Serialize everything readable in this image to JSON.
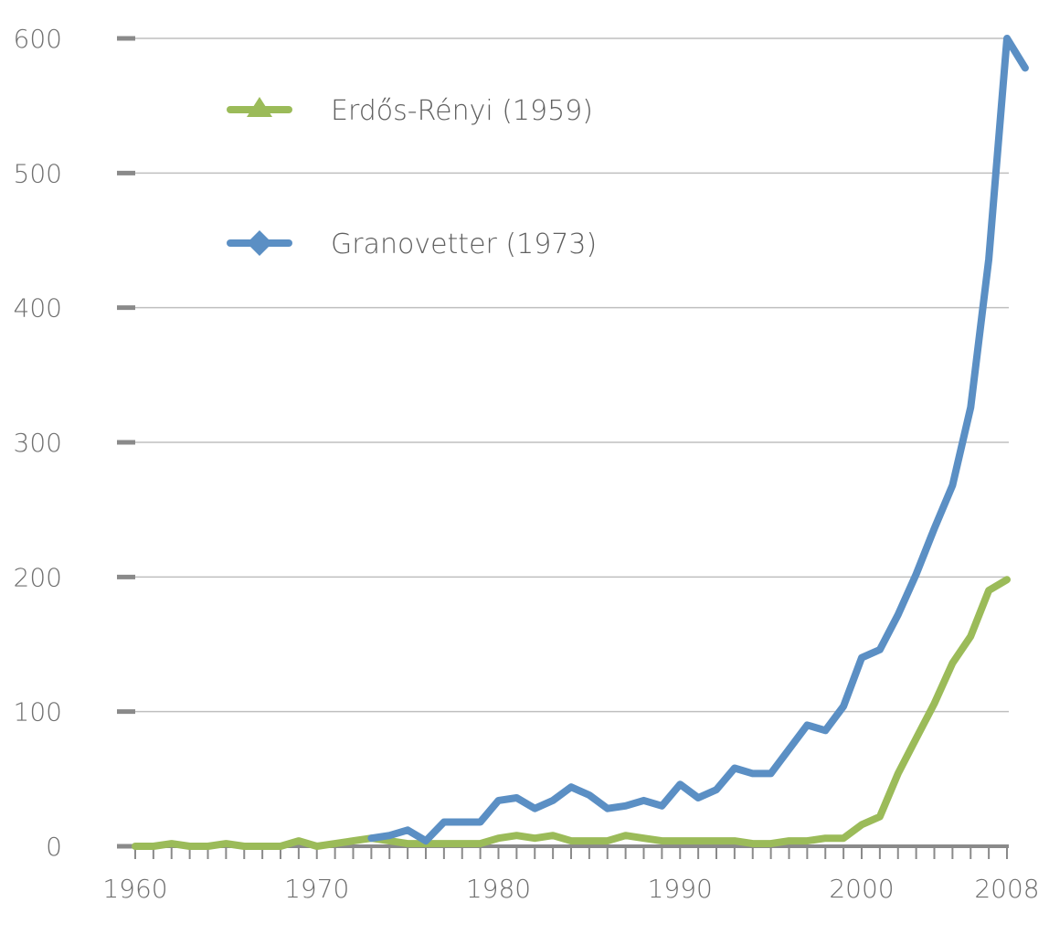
{
  "chart_data": {
    "type": "line",
    "title": "",
    "xlabel": "",
    "ylabel": "",
    "xlim": [
      1960,
      2008
    ],
    "ylim": [
      0,
      600
    ],
    "x_ticks": [
      1960,
      1970,
      1980,
      1990,
      2000,
      2008
    ],
    "y_ticks": [
      0,
      100,
      200,
      300,
      400,
      500,
      600
    ],
    "grid": true,
    "legend_position": "top-left",
    "series": [
      {
        "name": "Erdős-Rényi (1959)",
        "color": "#9bbb59",
        "marker": "triangle",
        "x": [
          1960,
          1961,
          1962,
          1963,
          1964,
          1965,
          1966,
          1967,
          1968,
          1969,
          1970,
          1971,
          1972,
          1973,
          1974,
          1975,
          1976,
          1977,
          1978,
          1979,
          1980,
          1981,
          1982,
          1983,
          1984,
          1985,
          1986,
          1987,
          1988,
          1989,
          1990,
          1991,
          1992,
          1993,
          1994,
          1995,
          1996,
          1997,
          1998,
          1999,
          2000,
          2001,
          2002,
          2003,
          2004,
          2005,
          2006,
          2007,
          2008
        ],
        "y": [
          0,
          0,
          2,
          0,
          0,
          2,
          0,
          0,
          0,
          4,
          0,
          2,
          4,
          6,
          4,
          2,
          2,
          2,
          2,
          2,
          6,
          8,
          6,
          8,
          4,
          4,
          4,
          8,
          6,
          4,
          4,
          4,
          4,
          4,
          2,
          2,
          4,
          4,
          6,
          6,
          16,
          22,
          54,
          80,
          106,
          136,
          156,
          190,
          198
        ]
      },
      {
        "name": "Granovetter (1973)",
        "color": "#5b8fc4",
        "marker": "diamond",
        "x": [
          1973,
          1974,
          1975,
          1976,
          1977,
          1978,
          1979,
          1980,
          1981,
          1982,
          1983,
          1984,
          1985,
          1986,
          1987,
          1988,
          1989,
          1990,
          1991,
          1992,
          1993,
          1994,
          1995,
          1996,
          1997,
          1998,
          1999,
          2000,
          2001,
          2002,
          2003,
          2004,
          2005,
          2006,
          2007,
          2008,
          2009
        ],
        "y": [
          6,
          8,
          12,
          4,
          18,
          18,
          18,
          34,
          36,
          28,
          34,
          44,
          38,
          28,
          30,
          34,
          30,
          46,
          36,
          42,
          58,
          54,
          54,
          72,
          90,
          86,
          104,
          140,
          146,
          172,
          202,
          236,
          268,
          326,
          436,
          600,
          578
        ]
      }
    ]
  }
}
